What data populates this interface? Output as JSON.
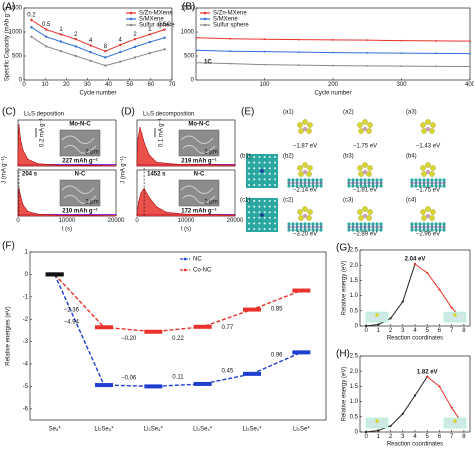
{
  "chart_data": [
    {
      "type": "line",
      "panel_label": "(A)",
      "xlabel": "Cycle number",
      "ylabel": "Specific Capacity (mAh g⁻¹)",
      "x": [
        3.5,
        10.5,
        17.5,
        24.5,
        31.5,
        38.5,
        45.5,
        52.5,
        59.5,
        66.5
      ],
      "rate_labels": [
        "0.2",
        "0.5",
        "1",
        "2",
        "4",
        "8",
        "4",
        "2",
        "1",
        "0.5C"
      ],
      "xlim": [
        0,
        70
      ],
      "xticks": [
        0,
        10,
        20,
        30,
        40,
        50,
        60,
        70
      ],
      "ylim": [
        0,
        1500
      ],
      "yticks": [
        0,
        500,
        1000,
        1500
      ],
      "legend": "upper right",
      "series": [
        {
          "name": "S/Zn-MXene",
          "color": "#e8322b",
          "values": [
            1250,
            1050,
            950,
            850,
            720,
            600,
            730,
            850,
            950,
            1050
          ]
        },
        {
          "name": "S/MXene",
          "color": "#2f6fd6",
          "values": [
            1100,
            900,
            800,
            700,
            580,
            470,
            580,
            690,
            790,
            880
          ]
        },
        {
          "name": "Sulfur sphere",
          "color": "#8a8a8a",
          "values": [
            900,
            700,
            600,
            500,
            400,
            300,
            380,
            470,
            560,
            640
          ]
        }
      ]
    },
    {
      "type": "line",
      "panel_label": "(B)",
      "xlabel": "Cycle number",
      "annotation": "1C",
      "x": [
        1,
        50,
        100,
        150,
        200,
        250,
        300,
        350,
        400
      ],
      "xlim": [
        0,
        400
      ],
      "xticks": [
        100,
        200,
        300,
        400
      ],
      "ylim": [
        0,
        1500
      ],
      "yticks": [
        0,
        500,
        1000,
        1500
      ],
      "legend": "upper left",
      "series": [
        {
          "name": "S/Zn-MXene",
          "color": "#e8322b",
          "values": [
            880,
            860,
            850,
            840,
            835,
            830,
            820,
            815,
            810
          ]
        },
        {
          "name": "S/MXene",
          "color": "#2f6fd6",
          "values": [
            620,
            600,
            590,
            580,
            570,
            565,
            560,
            555,
            550
          ]
        },
        {
          "name": "Sulfur sphere",
          "color": "#8a8a8a",
          "values": [
            360,
            340,
            320,
            310,
            300,
            295,
            290,
            285,
            280
          ]
        }
      ]
    },
    {
      "type": "area",
      "panel_label": "(C)",
      "title": "Li₂S deposition",
      "xlabel": "t (s)",
      "ylabel": "J (mA g⁻¹)",
      "xlim": [
        0,
        20000
      ],
      "xticks": [
        0,
        10000,
        20000
      ],
      "ylim": [
        0,
        1
      ],
      "color": "#e8322b",
      "scale_bar": 0.2,
      "scale_label": "0.2 mA g⁻¹",
      "panels": [
        {
          "name": "Mo-N-C",
          "capacity": "227 mAh g⁻¹",
          "sem_scale": "2 μm",
          "x": [
            0,
            100,
            200,
            500,
            1000,
            2000,
            4000,
            8000,
            20000
          ],
          "values": [
            0.2,
            0.7,
            0.9,
            0.6,
            0.35,
            0.15,
            0.05,
            0.02,
            0.01
          ]
        },
        {
          "name": "N-C",
          "peak_time": "204 s",
          "capacity": "210 mAh g⁻¹",
          "sem_scale": "2 μm",
          "x": [
            0,
            100,
            204,
            500,
            1000,
            2000,
            4000,
            8000,
            20000
          ],
          "values": [
            0.15,
            0.5,
            0.6,
            0.45,
            0.25,
            0.1,
            0.04,
            0.02,
            0.01
          ]
        }
      ]
    },
    {
      "type": "area",
      "panel_label": "(D)",
      "title": "Li₂S decomposition",
      "xlabel": "t (s)",
      "ylabel": "J (mA g⁻¹)",
      "xlim": [
        0,
        20000
      ],
      "xticks": [
        0,
        10000,
        20000
      ],
      "ylim": [
        0,
        0.5
      ],
      "color": "#e8322b",
      "scale_bar": 0.1,
      "scale_label": "0.1 mA g⁻¹",
      "panels": [
        {
          "name": "Mo-N-C",
          "capacity": "219 mAh g⁻¹",
          "sem_scale": "2 μm",
          "x": [
            0,
            200,
            600,
            1000,
            1500,
            2500,
            4000,
            8000,
            20000
          ],
          "values": [
            0.05,
            0.3,
            0.42,
            0.35,
            0.25,
            0.12,
            0.04,
            0.02,
            0.01
          ]
        },
        {
          "name": "N-C",
          "peak_time": "1452 s",
          "capacity": "172 mAh g⁻¹",
          "sem_scale": "2 μm",
          "x": [
            0,
            300,
            800,
            1452,
            2500,
            4000,
            6000,
            10000,
            20000
          ],
          "values": [
            0.02,
            0.15,
            0.25,
            0.3,
            0.2,
            0.1,
            0.04,
            0.02,
            0.01
          ]
        }
      ]
    },
    {
      "type": "line",
      "panel_label": "(F)",
      "ylabel": "Relative energies (eV)",
      "categories": [
        "Se₈*",
        "Li₂Se₈*",
        "Li₂Se₆*",
        "Li₂Se₄*",
        "Li₂Se₂*",
        "Li₂Se*"
      ],
      "ylim": [
        -6.5,
        1
      ],
      "yticks": [
        -6,
        -5,
        -4,
        -3,
        -2,
        -1,
        0,
        1
      ],
      "legend": "upper center",
      "series": [
        {
          "name": "NC",
          "color": "#1f3fd0",
          "dash": true,
          "values": [
            0,
            -4.94,
            -5.0,
            -4.89,
            -4.44,
            -3.48
          ],
          "step_labels": [
            null,
            "−4.94",
            "−0.06",
            "0.11",
            "0.45",
            "0.96"
          ]
        },
        {
          "name": "Co-NC",
          "color": "#e8322b",
          "dash": true,
          "values": [
            0,
            -2.36,
            -2.56,
            -2.34,
            -1.57,
            -0.72
          ],
          "step_labels": [
            null,
            "−2.36",
            "−0.20",
            "0.22",
            "0.77",
            "0.85"
          ]
        }
      ]
    },
    {
      "type": "line",
      "panel_label": "(G)",
      "xlabel": "Reaction coordinates",
      "ylabel": "Relative energy (eV)",
      "peak_label": "2.04 eV",
      "x": [
        0,
        1,
        2,
        3,
        4,
        5,
        6,
        7,
        8
      ],
      "xlim": [
        -0.5,
        8.5
      ],
      "xticks": [
        0,
        1,
        2,
        3,
        4,
        5,
        6,
        7,
        8
      ],
      "ylim": [
        0,
        2.5
      ],
      "yticks": [
        0,
        0.5,
        {
          "value": 1,
          "label": "1.0"
        },
        1.5,
        {
          "value": 2,
          "label": "2.0"
        },
        2.5
      ],
      "series": [
        {
          "color": "#222222",
          "values": [
            0,
            0.05,
            0.25,
            0.8,
            2.04,
            null,
            null,
            null,
            null
          ]
        },
        {
          "color": "#e8322b",
          "values": [
            null,
            null,
            null,
            null,
            2.04,
            1.75,
            1.2,
            0.6,
            0.2
          ]
        }
      ]
    },
    {
      "type": "line",
      "panel_label": "(H)",
      "xlabel": "Reaction coordinates",
      "ylabel": "Relative energy (eV)",
      "peak_label": "1.82 eV",
      "x": [
        0,
        1,
        2,
        3,
        4,
        5,
        6,
        7,
        8
      ],
      "xlim": [
        -0.5,
        8.5
      ],
      "xticks": [
        0,
        1,
        2,
        3,
        4,
        5,
        6,
        7,
        8
      ],
      "ylim": [
        0,
        2.5
      ],
      "yticks": [
        0,
        0.5,
        {
          "value": 1,
          "label": "1.0"
        },
        1.5,
        {
          "value": 2,
          "label": "2.0"
        },
        2.5
      ],
      "series": [
        {
          "color": "#222222",
          "values": [
            0,
            0.05,
            0.2,
            0.6,
            1.2,
            1.82,
            null,
            null,
            null
          ]
        },
        {
          "color": "#e8322b",
          "values": [
            null,
            null,
            null,
            null,
            null,
            1.82,
            1.5,
            0.8,
            0.2
          ]
        }
      ]
    }
  ],
  "panel_e": {
    "panel_label": "(E)",
    "rows": [
      [
        {
          "label": "(a1)",
          "energy": "−1.87 eV"
        },
        {
          "label": "(a2)",
          "energy": "−1.75 eV"
        },
        {
          "label": "(a3)",
          "energy": "−1.43 eV"
        }
      ],
      [
        {
          "label": "(b1)"
        },
        {
          "label": "(b2)",
          "energy": "−2.14 eV"
        },
        {
          "label": "(b3)",
          "energy": "−1.81 eV"
        },
        {
          "label": "(b4)",
          "energy": "−1.75 eV"
        }
      ],
      [
        {
          "label": "(c1)"
        },
        {
          "label": "(c2)",
          "energy": "−3.20 eV"
        },
        {
          "label": "(c3)",
          "energy": "−2.89 eV"
        },
        {
          "label": "(c4)",
          "energy": "−2.96 eV"
        }
      ]
    ]
  }
}
